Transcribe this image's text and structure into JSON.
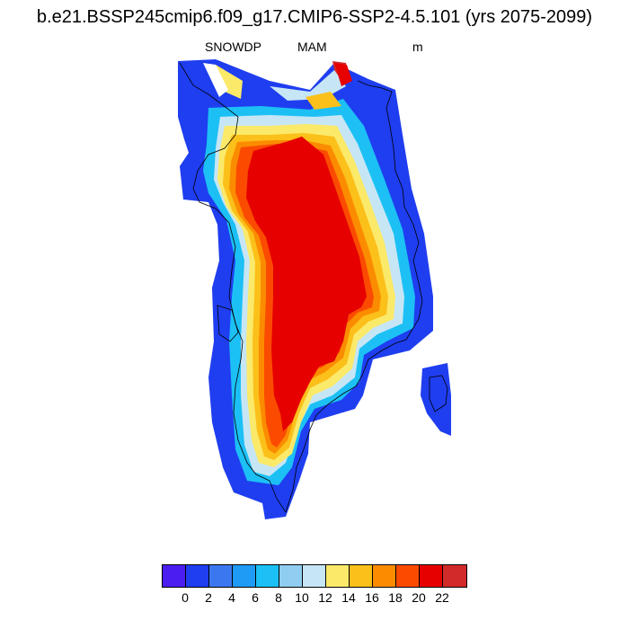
{
  "header": {
    "title": "b.e21.BSSP245cmip6.f09_g17.CMIP6-SSP2-4.5.101 (yrs 2075-2099)",
    "variable": "SNOWDP",
    "season": "MAM",
    "units": "m"
  },
  "map": {
    "region": "Greenland",
    "projection": "polar stereographic",
    "coastline_color": "#000000",
    "field_description": "Snow depth, spring mean; values 20+ over interior ice sheet, decreasing to 0-2 along coastal margins"
  },
  "colorbar": {
    "colors": [
      "#4b1df0",
      "#1f3ef0",
      "#3b78f0",
      "#1f9af5",
      "#1cc0f5",
      "#90cdf0",
      "#c6e6f5",
      "#fbe96a",
      "#fbc01a",
      "#fb8c00",
      "#fb4b00",
      "#e60000",
      "#d22a2a"
    ],
    "tick_labels": [
      "0",
      "2",
      "4",
      "6",
      "8",
      "10",
      "12",
      "14",
      "16",
      "18",
      "20",
      "22"
    ]
  }
}
